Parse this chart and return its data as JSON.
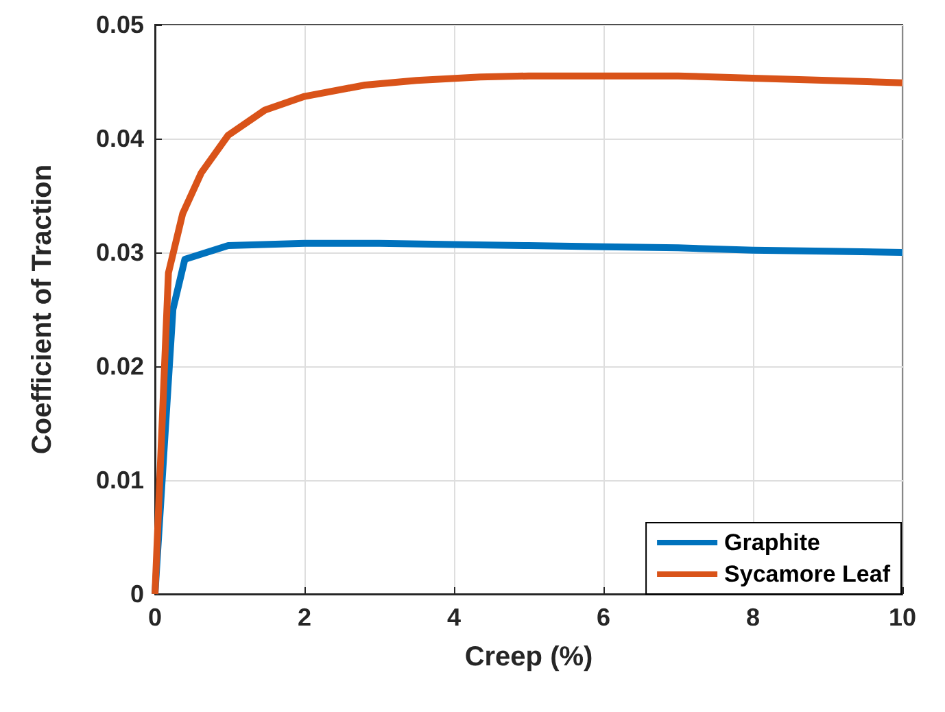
{
  "chart_data": {
    "type": "line",
    "xlabel": "Creep (%)",
    "ylabel": "Coefficient of Traction",
    "series": [
      {
        "name": "Graphite",
        "color": "#0072bd",
        "x": [
          0,
          0.24,
          0.4,
          0.98,
          2,
          3,
          4,
          5,
          6,
          7,
          8,
          9,
          10
        ],
        "values": [
          0,
          0.025,
          0.0294,
          0.0306,
          0.0308,
          0.0308,
          0.0307,
          0.0306,
          0.0305,
          0.0304,
          0.0302,
          0.0301,
          0.03
        ]
      },
      {
        "name": "Sycamore Leaf",
        "color": "#d95319",
        "x": [
          0,
          0.18,
          0.37,
          0.62,
          0.98,
          1.47,
          2,
          2.81,
          3.5,
          4.35,
          5,
          6,
          7,
          8,
          9,
          10
        ],
        "values": [
          0,
          0.0282,
          0.0334,
          0.037,
          0.0403,
          0.0425,
          0.0437,
          0.0447,
          0.0451,
          0.0454,
          0.0455,
          0.0455,
          0.0455,
          0.0453,
          0.0451,
          0.0449
        ]
      }
    ],
    "xlim": [
      0,
      10
    ],
    "xticks": [
      0,
      2,
      4,
      6,
      8,
      10
    ],
    "ylim": [
      0,
      0.05
    ],
    "yticks": [
      0,
      0.01,
      0.02,
      0.03,
      0.04,
      0.05
    ],
    "grid": true,
    "legend": "bottom right",
    "marker": "none",
    "line_style": "solid"
  }
}
